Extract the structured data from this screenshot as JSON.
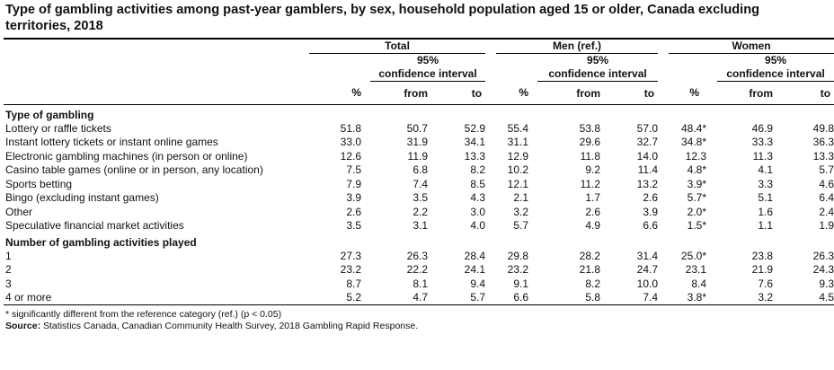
{
  "title": "Type of gambling activities among past-year gamblers, by sex, household population aged 15 or older, Canada excluding territories, 2018",
  "groups": [
    "Total",
    "Men (ref.)",
    "Women"
  ],
  "ci_label_line1": "95%",
  "ci_label_line2": "confidence interval",
  "col_pct": "%",
  "col_from": "from",
  "col_to": "to",
  "section1": "Type of gambling",
  "section2": "Number of gambling activities played",
  "rows1": [
    {
      "label": "Lottery or raffle tickets",
      "v": [
        "51.8",
        "50.7",
        "52.9",
        "55.4",
        "53.8",
        "57.0",
        "48.4*",
        "46.9",
        "49.8"
      ]
    },
    {
      "label": "Instant lottery tickets or instant online games",
      "v": [
        "33.0",
        "31.9",
        "34.1",
        "31.1",
        "29.6",
        "32.7",
        "34.8*",
        "33.3",
        "36.3"
      ]
    },
    {
      "label": "Electronic gambling machines (in person or online)",
      "v": [
        "12.6",
        "11.9",
        "13.3",
        "12.9",
        "11.8",
        "14.0",
        "12.3",
        "11.3",
        "13.3"
      ]
    },
    {
      "label": "Casino table games (online or in person, any location)",
      "v": [
        "7.5",
        "6.8",
        "8.2",
        "10.2",
        "9.2",
        "11.4",
        "4.8*",
        "4.1",
        "5.7"
      ]
    },
    {
      "label": "Sports betting",
      "v": [
        "7.9",
        "7.4",
        "8.5",
        "12.1",
        "11.2",
        "13.2",
        "3.9*",
        "3.3",
        "4.6"
      ]
    },
    {
      "label": "Bingo (excluding instant games)",
      "v": [
        "3.9",
        "3.5",
        "4.3",
        "2.1",
        "1.7",
        "2.6",
        "5.7*",
        "5.1",
        "6.4"
      ]
    },
    {
      "label": "Other",
      "v": [
        "2.6",
        "2.2",
        "3.0",
        "3.2",
        "2.6",
        "3.9",
        "2.0*",
        "1.6",
        "2.4"
      ]
    },
    {
      "label": "Speculative financial market activities",
      "v": [
        "3.5",
        "3.1",
        "4.0",
        "5.7",
        "4.9",
        "6.6",
        "1.5*",
        "1.1",
        "1.9"
      ]
    }
  ],
  "rows2": [
    {
      "label": "1",
      "v": [
        "27.3",
        "26.3",
        "28.4",
        "29.8",
        "28.2",
        "31.4",
        "25.0*",
        "23.8",
        "26.3"
      ]
    },
    {
      "label": "2",
      "v": [
        "23.2",
        "22.2",
        "24.1",
        "23.2",
        "21.8",
        "24.7",
        "23.1",
        "21.9",
        "24.3"
      ]
    },
    {
      "label": "3",
      "v": [
        "8.7",
        "8.1",
        "9.4",
        "9.1",
        "8.2",
        "10.0",
        "8.4",
        "7.6",
        "9.3"
      ]
    },
    {
      "label": "4 or more",
      "v": [
        "5.2",
        "4.7",
        "5.7",
        "6.6",
        "5.8",
        "7.4",
        "3.8*",
        "3.2",
        "4.5"
      ]
    }
  ],
  "footnote": "* significantly different from the reference category (ref.) (p < 0.05)",
  "source_label": "Source:",
  "source_text": "Statistics Canada, Canadian Community Health Survey, 2018 Gambling Rapid Response."
}
